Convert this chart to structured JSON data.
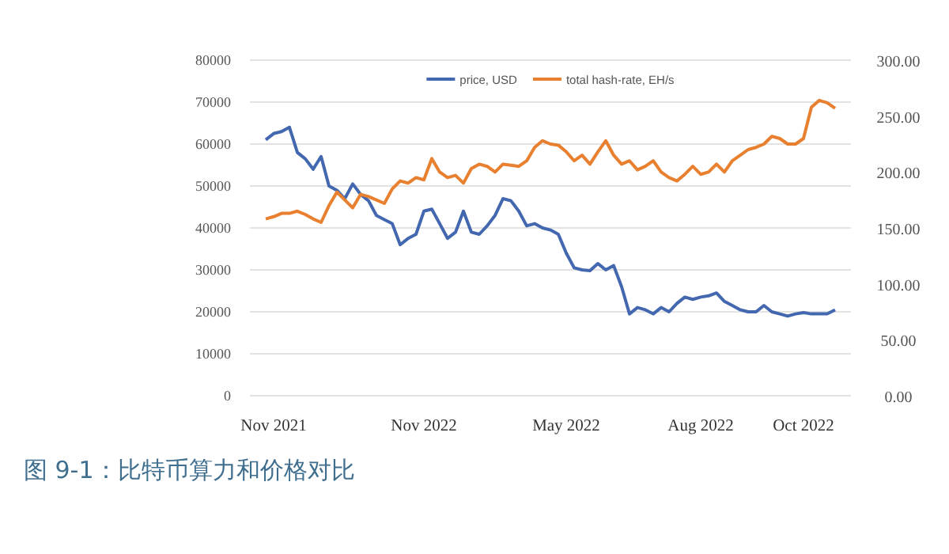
{
  "chart_data": {
    "type": "line",
    "title": "图 9-1：比特币算力和价格对比",
    "categories": [
      null,
      "Nov 2021",
      null,
      null,
      null,
      null,
      null,
      null,
      null,
      null,
      null,
      null,
      null,
      null,
      null,
      null,
      null,
      null,
      null,
      null,
      "Nov 2022",
      null,
      null,
      null,
      null,
      null,
      null,
      null,
      null,
      null,
      null,
      null,
      null,
      null,
      null,
      null,
      null,
      null,
      "May 2022",
      null,
      null,
      null,
      null,
      null,
      null,
      null,
      null,
      null,
      null,
      null,
      null,
      null,
      null,
      null,
      null,
      "Aug 2022",
      null,
      null,
      null,
      null,
      null,
      null,
      null,
      null,
      null,
      null,
      null,
      null,
      "Oct 2022",
      null,
      null,
      null,
      null
    ],
    "series": [
      {
        "name": "price, USD",
        "color": "#4468b0",
        "values": [
          61000,
          62500,
          63000,
          64000,
          58000,
          56500,
          54000,
          57000,
          50000,
          49000,
          47000,
          50500,
          48000,
          46500,
          43000,
          42000,
          41000,
          36000,
          37500,
          38500,
          44000,
          44500,
          41000,
          37500,
          39000,
          44000,
          39000,
          38500,
          40500,
          43000,
          47000,
          46500,
          44000,
          40500,
          41000,
          40000,
          39500,
          38500,
          34000,
          30500,
          30000,
          29800,
          31500,
          30000,
          31000,
          26000,
          19500,
          21000,
          20500,
          19500,
          21000,
          20000,
          22000,
          23500,
          23000,
          23500,
          23800,
          24500,
          22500,
          21500,
          20500,
          20000,
          20000,
          21500,
          20000,
          19500,
          19000,
          19500,
          19800,
          19500,
          19500,
          19500,
          20500
        ]
      },
      {
        "name": "total hash-rate, EH/s",
        "color": "#e8802f",
        "axis": "y2",
        "values": [
          158,
          160,
          163,
          163,
          165,
          162,
          158,
          155,
          170,
          182,
          175,
          168,
          180,
          178,
          175,
          172,
          185,
          192,
          190,
          195,
          193,
          212,
          200,
          195,
          197,
          190,
          203,
          207,
          205,
          200,
          207,
          206,
          205,
          210,
          222,
          228,
          225,
          224,
          218,
          210,
          215,
          207,
          218,
          228,
          215,
          207,
          210,
          202,
          205,
          210,
          200,
          195,
          192,
          198,
          205,
          198,
          200,
          207,
          200,
          210,
          215,
          220,
          222,
          225,
          232,
          230,
          225,
          225,
          230,
          258,
          264,
          262,
          257
        ]
      }
    ],
    "ylim": [
      0,
      80000
    ],
    "yticks": [
      0,
      10000,
      20000,
      30000,
      40000,
      50000,
      60000,
      70000,
      80000
    ],
    "y2lim": [
      0,
      300
    ],
    "y2ticks": [
      {
        "value": 0,
        "label": "0.00"
      },
      {
        "value": 50,
        "label": "50.00"
      },
      {
        "value": 100,
        "label": "100.00"
      },
      {
        "value": 150,
        "label": "150.00"
      },
      {
        "value": 200,
        "label": "200.00"
      },
      {
        "value": 250,
        "label": "250.00"
      },
      {
        "value": 300,
        "label": "300.00"
      }
    ],
    "grid": "y",
    "legend": "top"
  }
}
